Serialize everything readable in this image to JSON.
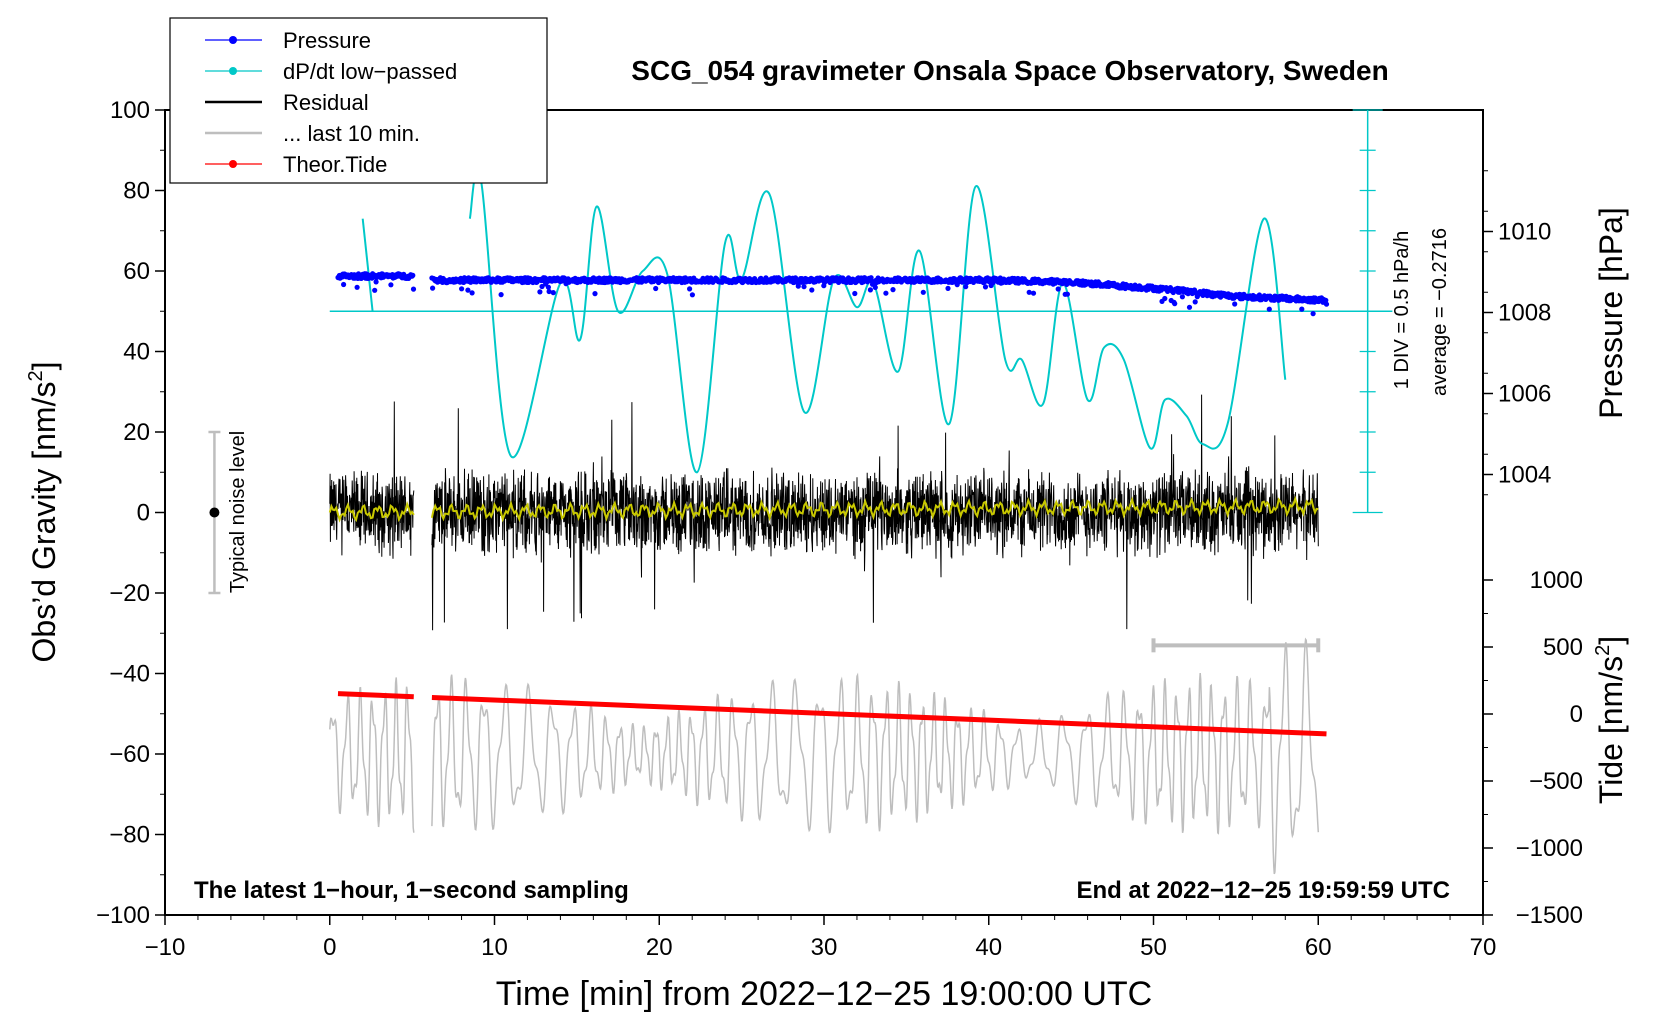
{
  "chart_data": {
    "type": "line",
    "title": "SCG_054 gravimeter Onsala Space Observatory, Sweden",
    "xlabel": "Time [min] from 2022−12−25 19:00:00 UTC",
    "ylabel_left": "Obs’d Gravity [nm/s²]",
    "ylabel_left_main": "Obs’d Gravity [nm/s",
    "ylabel_right_pressure": "Pressure [hPa]",
    "ylabel_right_tide_main": "Tide [nm/s",
    "superscript": "2",
    "unit_close": "]",
    "xlim": [
      -10,
      70
    ],
    "ylim_left": [
      -100,
      100
    ],
    "pressure_range": [
      1000,
      1010
    ],
    "tide_range": [
      -1500,
      1000
    ],
    "x_ticks": [
      {
        "value": -10,
        "label": "−10"
      },
      {
        "value": 0,
        "label": "0"
      },
      {
        "value": 10,
        "label": "10"
      },
      {
        "value": 20,
        "label": "20"
      },
      {
        "value": 30,
        "label": "30"
      },
      {
        "value": 40,
        "label": "40"
      },
      {
        "value": 50,
        "label": "50"
      },
      {
        "value": 60,
        "label": "60"
      },
      {
        "value": 70,
        "label": "70"
      }
    ],
    "y_ticks_left": [
      {
        "value": 100,
        "label": "100"
      },
      {
        "value": 80,
        "label": "80"
      },
      {
        "value": 60,
        "label": "60"
      },
      {
        "value": 40,
        "label": "40"
      },
      {
        "value": 20,
        "label": "20"
      },
      {
        "value": 0,
        "label": "0"
      },
      {
        "value": -20,
        "label": "−20"
      },
      {
        "value": -40,
        "label": "−40"
      },
      {
        "value": -60,
        "label": "−60"
      },
      {
        "value": -80,
        "label": "−80"
      },
      {
        "value": -100,
        "label": "−100"
      }
    ],
    "pressure_ticks": [
      {
        "value": 1010,
        "label": "1010"
      },
      {
        "value": 1008,
        "label": "1008"
      },
      {
        "value": 1006,
        "label": "1006"
      },
      {
        "value": 1004,
        "label": "1004"
      }
    ],
    "tide_ticks": [
      {
        "value": 1000,
        "label": "1000"
      },
      {
        "value": 500,
        "label": "500"
      },
      {
        "value": 0,
        "label": "0"
      },
      {
        "value": -500,
        "label": "−500"
      },
      {
        "value": -1000,
        "label": "−1000"
      },
      {
        "value": -1500,
        "label": "−1500"
      }
    ],
    "legend": [
      {
        "label": "Pressure",
        "color": "#0000ff",
        "marker": true
      },
      {
        "label": "dP/dt low−passed",
        "color": "#00c8c8",
        "marker": true
      },
      {
        "label": "Residual",
        "color": "#000000",
        "marker": false
      },
      {
        "label": "... last 10 min.",
        "color": "#bebebe",
        "marker": false
      },
      {
        "label": "Theor.Tide",
        "color": "#ff0000",
        "marker": true
      }
    ],
    "annotations": {
      "bottom_left": "The latest 1−hour, 1−second sampling",
      "bottom_right": "End at 2022−12−25 19:59:59 UTC",
      "noise_label": "Typical noise level",
      "dpdt_scale": "1 DIV = 0.5 hPa/h",
      "dpdt_average": "average = −0.2716"
    },
    "noise_bar": {
      "x": -7,
      "center": 0,
      "half_range": 20
    },
    "last10_bar": {
      "x_start": 50,
      "x_end": 60,
      "y": -33
    },
    "data_gap": [
      5.1,
      6.2
    ],
    "pressure_series": {
      "x": [
        0.5,
        5.0,
        6.5,
        10,
        20,
        30,
        40,
        45,
        50,
        55,
        60.5
      ],
      "y_hPa": [
        1008.9,
        1008.9,
        1008.8,
        1008.8,
        1008.8,
        1008.8,
        1008.8,
        1008.75,
        1008.6,
        1008.4,
        1008.3
      ]
    },
    "dpdt_series": {
      "zero_level_y": 50,
      "x": [
        2.0,
        2.6,
        8.5,
        9.2,
        11.0,
        14.0,
        15.2,
        16.2,
        17.5,
        19.0,
        20.5,
        22.3,
        24.0,
        25.0,
        26.7,
        28.8,
        30.6,
        32.0,
        33.0,
        34.5,
        35.8,
        37.6,
        39.2,
        41.0,
        42.0,
        43.3,
        44.5,
        46.0,
        47.0,
        48.2,
        49.8,
        50.7,
        52.0,
        53.0,
        54.5,
        56.7,
        58.0
      ],
      "y": [
        73,
        50,
        73,
        82,
        14,
        57,
        43,
        76,
        50,
        60,
        59,
        10,
        67,
        58,
        79,
        25,
        58,
        51,
        57,
        35,
        65,
        22,
        81,
        38,
        38,
        27,
        57,
        28,
        41,
        38,
        16,
        28,
        24,
        17,
        22,
        73,
        33
      ]
    },
    "residual_series": {
      "x_range": [
        0,
        60
      ],
      "typical_amplitude": 8,
      "peak_amplitude": 30
    },
    "residual_smoothed": {
      "x": [
        0,
        60
      ],
      "y": [
        0,
        1.5
      ]
    },
    "last10_series": {
      "x_range": [
        0,
        60
      ],
      "center": -60,
      "amplitude": 15
    },
    "tide_series": {
      "x": [
        0.5,
        60.5
      ],
      "y": [
        -45,
        -55
      ]
    }
  }
}
